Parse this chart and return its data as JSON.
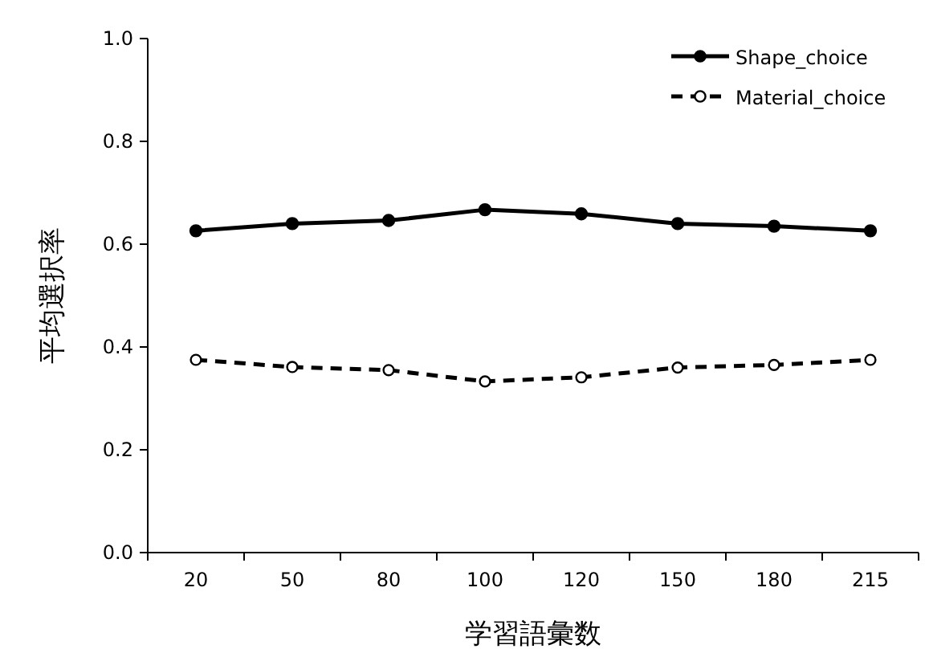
{
  "chart_data": {
    "type": "line",
    "xlabel": "学習語彙数",
    "ylabel": "平均選択率",
    "categories": [
      "20",
      "50",
      "80",
      "100",
      "120",
      "150",
      "180",
      "215"
    ],
    "series": [
      {
        "name": "Shape_choice",
        "color": "#000000",
        "marker": "circle",
        "line_style": "solid",
        "values": [
          0.626,
          0.64,
          0.646,
          0.667,
          0.659,
          0.64,
          0.635,
          0.626
        ]
      },
      {
        "name": "Material_choice",
        "color": "#000000",
        "marker": "circle",
        "line_style": "dashed",
        "values": [
          0.375,
          0.361,
          0.355,
          0.333,
          0.341,
          0.36,
          0.365,
          0.375
        ]
      }
    ],
    "ylim": [
      0,
      1
    ],
    "yticks": [
      {
        "value": 0,
        "label": "0.0"
      },
      {
        "value": 0.2,
        "label": "0.2"
      },
      {
        "value": 0.4,
        "label": "0.4"
      },
      {
        "value": 0.6,
        "label": "0.6"
      },
      {
        "value": 0.8,
        "label": "0.8"
      },
      {
        "value": 1,
        "label": "1.0"
      }
    ],
    "grid": false,
    "legend": "top right"
  }
}
